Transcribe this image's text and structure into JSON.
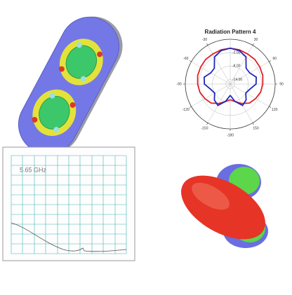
{
  "chart_data": {
    "type": "polar",
    "title": "Radiation Pattern 4",
    "theta": [
      -180,
      -165,
      -150,
      -135,
      -120,
      -105,
      -90,
      -75,
      -60,
      -45,
      -30,
      -15,
      0,
      15,
      30,
      45,
      60,
      75,
      90,
      105,
      120,
      135,
      150,
      165,
      180
    ],
    "series": [
      {
        "color": "#e0202a",
        "values": [
          -9,
          -8,
          -6,
          -4,
          -3,
          -2,
          -1.5,
          -1,
          -0.8,
          -0.5,
          -0.5,
          -0.2,
          0,
          -0.2,
          -0.5,
          -0.5,
          -0.8,
          -1,
          -1.5,
          -2,
          -3,
          -4,
          -6,
          -8,
          -9
        ]
      },
      {
        "color": "#2028b8",
        "values": [
          -11,
          -8,
          -5,
          -6,
          -8,
          -7,
          -4.5,
          -4,
          -6,
          -6,
          -2,
          -0.5,
          0,
          -0.5,
          -2,
          -6,
          -6,
          -4,
          -4.5,
          -7,
          -8,
          -6,
          -5,
          -8,
          -11
        ]
      }
    ],
    "rlim": [
      -16,
      4
    ],
    "rticks": [
      {
        "value": -2,
        "label": "-2.00"
      },
      {
        "value": -8,
        "label": "-8.00"
      },
      {
        "value": -14,
        "label": "-14.00"
      }
    ],
    "angle_ticks": [
      -30,
      30,
      -60,
      60,
      -90,
      90,
      -120,
      120,
      -150,
      150,
      -180
    ]
  },
  "vna": {
    "marker_label": "5.65 GHz"
  }
}
